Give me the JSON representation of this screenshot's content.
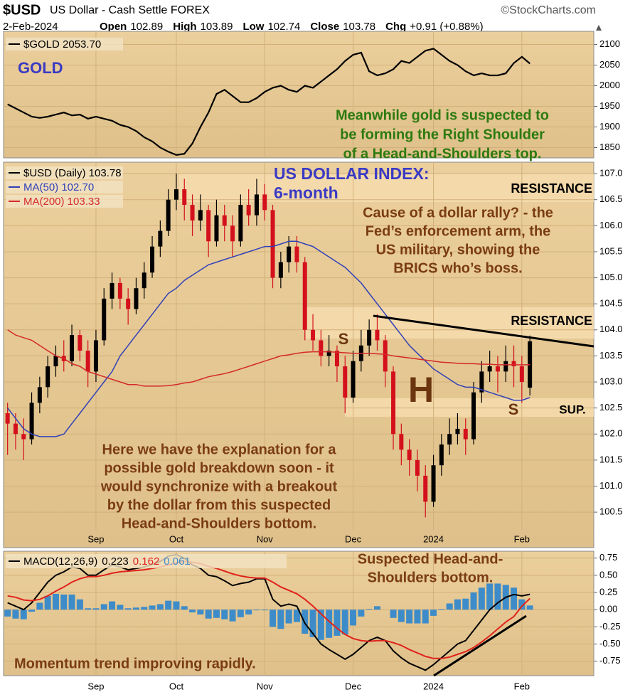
{
  "header": {
    "symbol": "$USD",
    "name": "US Dollar - Cash Settle FOREX",
    "source": "©StockCharts.com",
    "date": "2-Feb-2024",
    "quote": [
      {
        "label": "Open",
        "value": 102.89
      },
      {
        "label": "High",
        "value": 103.89
      },
      {
        "label": "Low",
        "value": 102.74
      },
      {
        "label": "Close",
        "value": 103.78
      },
      {
        "label": "Chg",
        "value": "+0.91 (+0.88%)"
      }
    ]
  },
  "chart_data": [
    {
      "type": "line",
      "grid": true,
      "series": [
        {
          "name": "$GOLD 2053.70",
          "color": "#000000",
          "values": [
            1955,
            1945,
            1935,
            1925,
            1922,
            1925,
            1930,
            1935,
            1928,
            1930,
            1920,
            1925,
            1920,
            1915,
            1905,
            1900,
            1890,
            1875,
            1865,
            1850,
            1840,
            1832,
            1835,
            1860,
            1900,
            1935,
            1980,
            1990,
            1975,
            1960,
            1960,
            1970,
            1985,
            1995,
            2000,
            1990,
            1985,
            2000,
            1995,
            2010,
            2025,
            2040,
            2060,
            2075,
            2080,
            2035,
            2025,
            2030,
            2040,
            2060,
            2055,
            2070,
            2085,
            2090,
            2075,
            2060,
            2050,
            2035,
            2025,
            2030,
            2025,
            2025,
            2030,
            2055,
            2070,
            2053.7
          ]
        }
      ],
      "ylim": [
        1825,
        2132
      ],
      "yticks": [
        1850,
        1900,
        1950,
        2000,
        2050,
        2100
      ],
      "annotations": [
        {
          "text": [
            "GOLD"
          ],
          "color": "#3a3ac4"
        },
        {
          "text": [
            "Meanwhile gold is suspected to",
            "be forming the Right Shoulder",
            "of a Head-and-Shoulders top."
          ],
          "color": "#2d7a10"
        }
      ]
    },
    {
      "type": "candlestick",
      "grid": true,
      "categories": [
        null,
        null,
        null,
        null,
        null,
        null,
        null,
        null,
        null,
        null,
        null,
        "Sep",
        null,
        null,
        null,
        null,
        null,
        null,
        null,
        null,
        null,
        "Oct",
        null,
        null,
        null,
        null,
        null,
        null,
        null,
        null,
        null,
        null,
        "Nov",
        null,
        null,
        null,
        null,
        null,
        null,
        null,
        null,
        null,
        null,
        "Dec",
        null,
        null,
        null,
        null,
        null,
        null,
        null,
        null,
        null,
        "2024",
        null,
        null,
        null,
        null,
        null,
        null,
        null,
        null,
        null,
        null,
        "Feb",
        null
      ],
      "series": [
        {
          "name": "$USD (Daily) 103.78",
          "up_color": "#000000",
          "down_color": "#d4101c",
          "open": [
            102.4,
            102.2,
            102.0,
            101.9,
            102.6,
            102.9,
            103.3,
            103.5,
            103.4,
            103.9,
            103.6,
            103.2,
            103.8,
            104.6,
            104.9,
            104.6,
            104.4,
            104.8,
            105.1,
            105.6,
            105.9,
            106.5,
            106.7,
            106.4,
            106.1,
            106.3,
            105.7,
            106.2,
            106.0,
            105.7,
            106.4,
            106.2,
            106.6,
            106.3,
            105.0,
            105.3,
            105.6,
            105.3,
            104.0,
            103.8,
            103.5,
            103.6,
            103.3,
            102.7,
            103.4,
            103.7,
            104.0,
            103.8,
            103.2,
            102.0,
            101.7,
            101.5,
            101.2,
            100.7,
            101.4,
            101.8,
            102.0,
            102.1,
            101.9,
            102.8,
            103.2,
            103.3,
            103.2,
            103.4,
            103.3,
            102.89
          ],
          "high": [
            102.6,
            102.4,
            102.3,
            102.8,
            103.1,
            103.5,
            103.7,
            103.8,
            104.1,
            104.0,
            103.8,
            104.0,
            104.8,
            105.1,
            105.0,
            104.8,
            105.0,
            105.3,
            105.8,
            106.1,
            106.7,
            107.0,
            106.9,
            106.6,
            106.6,
            106.4,
            106.5,
            106.4,
            106.2,
            106.6,
            106.7,
            106.9,
            106.8,
            106.4,
            105.5,
            105.8,
            105.8,
            105.4,
            104.3,
            104.0,
            103.9,
            103.7,
            103.5,
            103.6,
            104.0,
            104.2,
            104.3,
            103.9,
            103.3,
            102.2,
            101.9,
            101.7,
            101.4,
            101.6,
            102.0,
            102.3,
            102.4,
            102.3,
            103.0,
            103.4,
            103.6,
            103.5,
            103.7,
            103.7,
            103.5,
            103.89
          ],
          "low": [
            101.6,
            101.7,
            101.5,
            101.8,
            102.4,
            102.7,
            103.1,
            103.2,
            103.3,
            103.4,
            102.9,
            103.0,
            103.7,
            104.4,
            104.4,
            104.1,
            104.3,
            104.6,
            105.0,
            105.4,
            105.8,
            106.3,
            106.1,
            105.8,
            105.9,
            105.4,
            105.6,
            105.7,
            105.4,
            105.6,
            106.0,
            106.0,
            106.1,
            104.8,
            104.8,
            105.1,
            105.1,
            103.8,
            103.6,
            103.3,
            103.3,
            103.0,
            102.4,
            102.6,
            103.2,
            103.5,
            103.6,
            102.9,
            101.7,
            101.4,
            101.2,
            100.9,
            100.4,
            100.6,
            101.2,
            101.6,
            101.8,
            101.6,
            101.8,
            102.6,
            103.0,
            102.8,
            103.0,
            102.9,
            102.6,
            102.74
          ],
          "close": [
            102.2,
            102.0,
            101.9,
            102.6,
            102.9,
            103.3,
            103.5,
            103.4,
            103.9,
            103.6,
            103.2,
            103.8,
            104.6,
            104.9,
            104.6,
            104.4,
            104.8,
            105.1,
            105.6,
            105.9,
            106.5,
            106.7,
            106.4,
            106.1,
            106.3,
            105.7,
            106.2,
            106.0,
            105.7,
            106.4,
            106.2,
            106.6,
            106.3,
            105.0,
            105.3,
            105.6,
            105.3,
            104.0,
            103.8,
            103.5,
            103.6,
            103.3,
            102.7,
            103.4,
            103.7,
            104.0,
            103.8,
            103.2,
            102.0,
            101.7,
            101.5,
            101.2,
            100.7,
            101.4,
            101.8,
            102.0,
            102.1,
            101.9,
            102.8,
            103.2,
            103.3,
            103.2,
            103.4,
            103.3,
            103.0,
            103.78
          ]
        },
        {
          "name": "MA(50) 102.70",
          "color": "#3040b8",
          "values": [
            102.5,
            102.3,
            102.1,
            102.0,
            101.95,
            101.95,
            101.95,
            102.0,
            102.2,
            102.4,
            102.6,
            102.8,
            103.0,
            103.2,
            103.5,
            103.7,
            103.9,
            104.1,
            104.3,
            104.5,
            104.7,
            104.8,
            104.95,
            105.05,
            105.15,
            105.25,
            105.3,
            105.35,
            105.4,
            105.45,
            105.5,
            105.55,
            105.6,
            105.6,
            105.65,
            105.7,
            105.7,
            105.65,
            105.6,
            105.5,
            105.4,
            105.3,
            105.2,
            105.05,
            104.9,
            104.7,
            104.5,
            104.3,
            104.1,
            103.9,
            103.7,
            103.55,
            103.4,
            103.25,
            103.15,
            103.05,
            102.95,
            102.9,
            102.9,
            102.85,
            102.8,
            102.75,
            102.7,
            102.65,
            102.65,
            102.7
          ]
        },
        {
          "name": "MA(200) 103.33",
          "color": "#d42a2a",
          "values": [
            104.0,
            103.9,
            103.85,
            103.8,
            103.7,
            103.6,
            103.5,
            103.45,
            103.35,
            103.3,
            103.2,
            103.15,
            103.1,
            103.05,
            103.0,
            102.95,
            102.95,
            102.92,
            102.92,
            102.92,
            102.93,
            102.95,
            102.98,
            103.0,
            103.05,
            103.1,
            103.13,
            103.16,
            103.2,
            103.25,
            103.3,
            103.35,
            103.4,
            103.45,
            103.5,
            103.52,
            103.55,
            103.57,
            103.58,
            103.58,
            103.58,
            103.57,
            103.56,
            103.55,
            103.55,
            103.55,
            103.54,
            103.53,
            103.5,
            103.48,
            103.46,
            103.44,
            103.42,
            103.4,
            103.38,
            103.37,
            103.36,
            103.35,
            103.35,
            103.34,
            103.34,
            103.33,
            103.33,
            103.33,
            103.33,
            103.33
          ]
        }
      ],
      "ylim": [
        100.16,
        107.22
      ],
      "yticks": [
        {
          "value": 100.5,
          "label": "100.5"
        },
        {
          "value": 101,
          "label": "101.0"
        },
        101.5,
        {
          "value": 102,
          "label": "102.0"
        },
        102.5,
        {
          "value": 103,
          "label": "103.0"
        },
        103.5,
        {
          "value": 104,
          "label": "104.0"
        },
        104.5,
        {
          "value": 105,
          "label": "105.0"
        },
        105.5,
        {
          "value": 106,
          "label": "106.0"
        },
        106.5,
        {
          "value": 107,
          "label": "107.0"
        }
      ],
      "annotations": [
        {
          "text": [
            "US DOLLAR INDEX:",
            "6-month"
          ],
          "color": "#3a3ac4"
        },
        {
          "text": [
            "RESISTANCE"
          ],
          "color": "#000000"
        },
        {
          "text": [
            "Cause of a dollar rally? - the",
            "Fed’s enforcement arm, the",
            "US military, showing the",
            "BRICS who’s boss."
          ],
          "color": "#7a3c12"
        },
        {
          "text": [
            "RESISTANCE"
          ],
          "color": "#000000"
        },
        {
          "text": [
            "S"
          ],
          "color": "#6b3510"
        },
        {
          "text": [
            "H"
          ],
          "color": "#6b3510"
        },
        {
          "text": [
            "S"
          ],
          "color": "#6b3510"
        },
        {
          "text": [
            "SUP."
          ],
          "color": "#000000"
        },
        {
          "text": [
            "Here we have the explanation for a",
            "possible gold breakdown soon - it",
            "would synchronize with a breakout",
            "by the dollar from this suspected",
            "Head-and-Shoulders bottom."
          ],
          "color": "#7a3c12"
        }
      ]
    },
    {
      "type": "macd",
      "grid": true,
      "categories": [
        null,
        null,
        null,
        null,
        null,
        null,
        null,
        null,
        null,
        null,
        null,
        "Sep",
        null,
        null,
        null,
        null,
        null,
        null,
        null,
        null,
        null,
        "Oct",
        null,
        null,
        null,
        null,
        null,
        null,
        null,
        null,
        null,
        null,
        "Nov",
        null,
        null,
        null,
        null,
        null,
        null,
        null,
        null,
        null,
        null,
        "Dec",
        null,
        null,
        null,
        null,
        null,
        null,
        null,
        null,
        null,
        "2024",
        null,
        null,
        null,
        null,
        null,
        null,
        null,
        null,
        null,
        null,
        "Feb",
        null
      ],
      "series": [
        {
          "name": "MACD(12,26,9)",
          "style": "line",
          "color": "#000000",
          "values": [
            0.1,
            0.05,
            0.0,
            0.1,
            0.25,
            0.4,
            0.5,
            0.55,
            0.62,
            0.6,
            0.5,
            0.5,
            0.58,
            0.65,
            0.62,
            0.58,
            0.6,
            0.62,
            0.66,
            0.7,
            0.78,
            0.8,
            0.75,
            0.65,
            0.6,
            0.5,
            0.48,
            0.42,
            0.35,
            0.38,
            0.4,
            0.45,
            0.45,
            0.15,
            0.05,
            0.08,
            0.05,
            -0.2,
            -0.35,
            -0.5,
            -0.58,
            -0.65,
            -0.72,
            -0.65,
            -0.55,
            -0.45,
            -0.4,
            -0.45,
            -0.6,
            -0.7,
            -0.78,
            -0.83,
            -0.88,
            -0.8,
            -0.7,
            -0.6,
            -0.5,
            -0.45,
            -0.3,
            -0.15,
            0.0,
            0.1,
            0.18,
            0.22,
            0.2,
            0.223
          ]
        },
        {
          "style": "line",
          "color": "#e0231c",
          "values": [
            0.2,
            0.18,
            0.14,
            0.13,
            0.15,
            0.2,
            0.27,
            0.33,
            0.4,
            0.45,
            0.48,
            0.48,
            0.5,
            0.53,
            0.55,
            0.56,
            0.57,
            0.58,
            0.6,
            0.62,
            0.65,
            0.68,
            0.7,
            0.69,
            0.67,
            0.63,
            0.6,
            0.56,
            0.52,
            0.49,
            0.47,
            0.46,
            0.46,
            0.4,
            0.33,
            0.28,
            0.23,
            0.15,
            0.05,
            -0.06,
            -0.17,
            -0.27,
            -0.36,
            -0.42,
            -0.45,
            -0.46,
            -0.45,
            -0.45,
            -0.48,
            -0.52,
            -0.58,
            -0.63,
            -0.68,
            -0.71,
            -0.71,
            -0.69,
            -0.65,
            -0.61,
            -0.55,
            -0.47,
            -0.38,
            -0.28,
            -0.18,
            -0.1,
            0.05,
            0.162
          ]
        },
        {
          "style": "histogram",
          "color": "#3d8cc9",
          "values": [
            -0.1,
            -0.13,
            -0.14,
            -0.03,
            0.1,
            0.2,
            0.23,
            0.22,
            0.22,
            0.15,
            0.02,
            0.02,
            0.08,
            0.12,
            0.07,
            0.02,
            0.03,
            0.04,
            0.06,
            0.08,
            0.13,
            0.12,
            0.05,
            -0.04,
            -0.07,
            -0.13,
            -0.12,
            -0.14,
            -0.17,
            -0.11,
            -0.07,
            -0.01,
            -0.01,
            -0.25,
            -0.28,
            -0.2,
            -0.18,
            -0.35,
            -0.4,
            -0.44,
            -0.41,
            -0.38,
            -0.36,
            -0.23,
            -0.1,
            0.01,
            0.05,
            0.0,
            -0.12,
            -0.18,
            -0.2,
            -0.2,
            -0.2,
            -0.09,
            0.01,
            0.09,
            0.15,
            0.16,
            0.25,
            0.32,
            0.38,
            0.38,
            0.36,
            0.32,
            0.15,
            0.061
          ]
        }
      ],
      "ylim": [
        -0.96,
        0.85
      ],
      "yticks": [
        -0.75,
        {
          "value": -0.5,
          "label": "-0.50"
        },
        -0.25,
        {
          "value": 0,
          "label": "0.00"
        },
        0.25,
        {
          "value": 0.5,
          "label": "0.50"
        },
        0.75
      ],
      "annotations": [
        {
          "text": [
            "Suspected Head-and-",
            "Shoulders  bottom."
          ],
          "color": "#7a3c12"
        },
        {
          "text": [
            "Momentum trend improving rapidly."
          ],
          "color": "#7a3c12"
        }
      ]
    }
  ]
}
